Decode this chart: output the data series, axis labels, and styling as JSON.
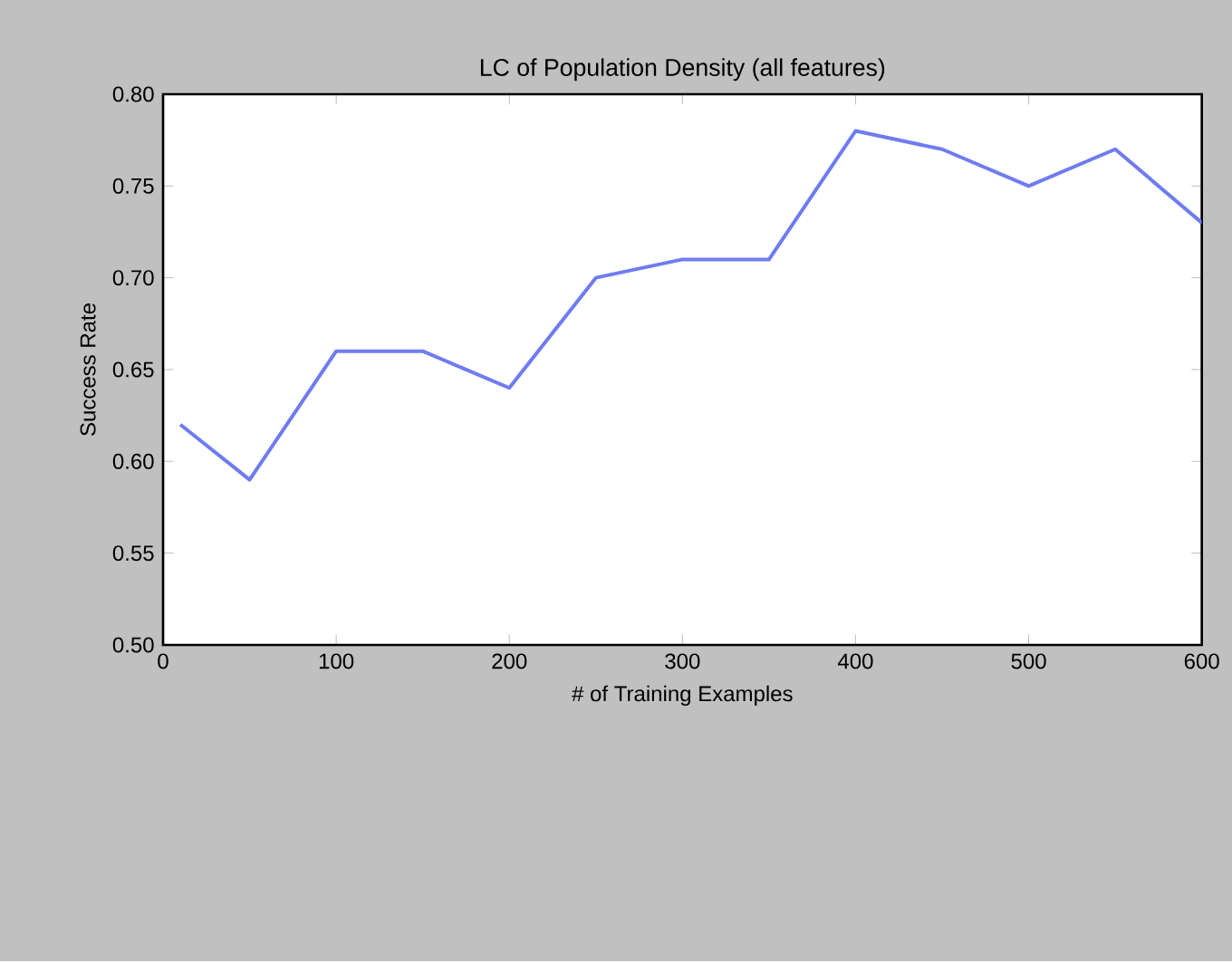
{
  "chart_data": {
    "type": "line",
    "title": "LC of Population Density (all features)",
    "xlabel": "# of Training Examples",
    "ylabel": "Success Rate",
    "x": [
      10,
      50,
      100,
      150,
      200,
      250,
      300,
      350,
      400,
      450,
      500,
      550,
      600
    ],
    "series": [
      {
        "color": "#6f7cf0",
        "values": [
          0.62,
          0.59,
          0.66,
          0.66,
          0.64,
          0.7,
          0.71,
          0.71,
          0.78,
          0.77,
          0.75,
          0.77,
          0.73
        ]
      }
    ],
    "xlim": [
      0,
      600
    ],
    "ylim": [
      0.5,
      0.8
    ],
    "xticks": [
      0,
      100,
      200,
      300,
      400,
      500,
      600
    ],
    "yticks": [
      {
        "value": 0.5,
        "label": "0.50"
      },
      {
        "value": 0.55,
        "label": "0.55"
      },
      {
        "value": 0.6,
        "label": "0.60"
      },
      {
        "value": 0.65,
        "label": "0.65"
      },
      {
        "value": 0.7,
        "label": "0.70"
      },
      {
        "value": 0.75,
        "label": "0.75"
      },
      {
        "value": 0.8,
        "label": "0.80"
      }
    ],
    "grid": false,
    "legend": false,
    "marker": "none",
    "line_style": "solid"
  }
}
